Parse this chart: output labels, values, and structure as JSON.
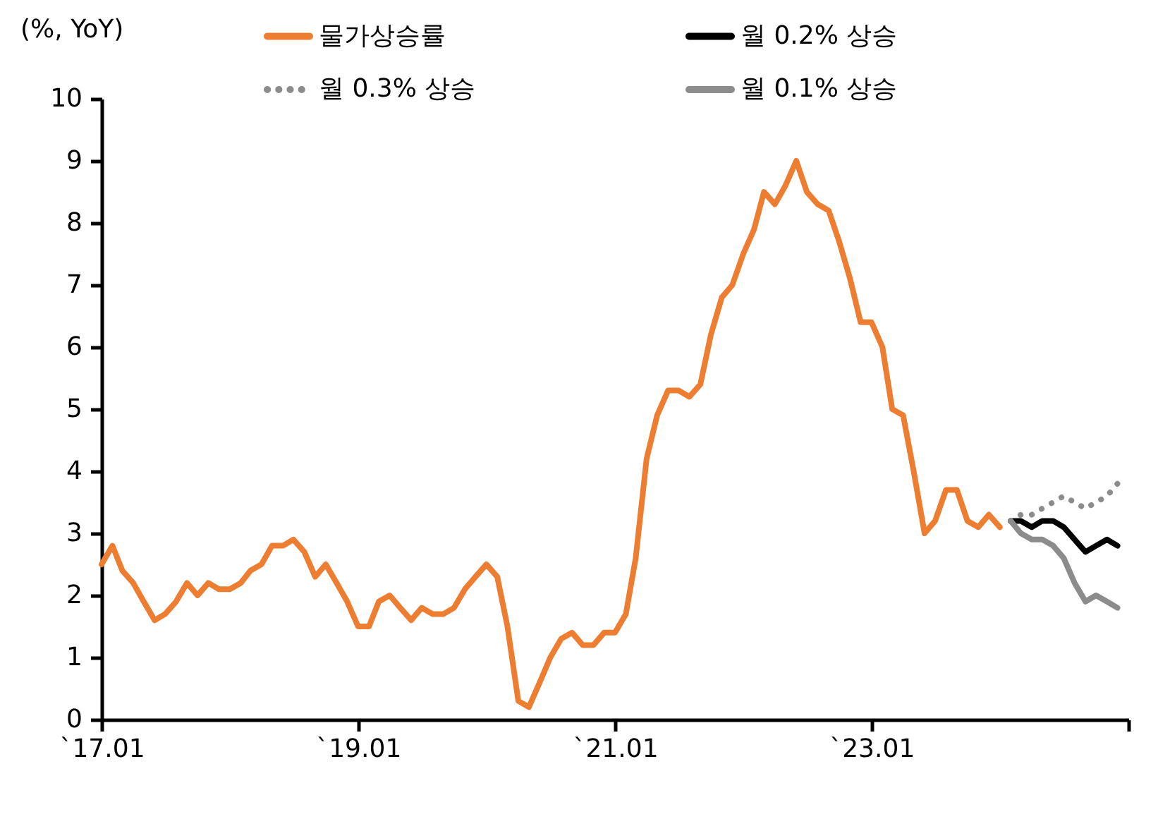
{
  "chart_data": {
    "type": "line",
    "ylabel": "(%, YoY)",
    "xlim": [
      "2017-01",
      "2025-01"
    ],
    "xticks": [
      {
        "value": "2017-01",
        "label": "`17.01"
      },
      {
        "value": "2019-01",
        "label": "`19.01"
      },
      {
        "value": "2021-01",
        "label": "`21.01"
      },
      {
        "value": "2023-01",
        "label": "`23.01"
      },
      {
        "value": "2025-01",
        "label": null
      }
    ],
    "ylim": [
      0,
      10
    ],
    "yticks": [
      0,
      1,
      2,
      3,
      4,
      5,
      6,
      7,
      8,
      9,
      10
    ],
    "grid": false,
    "legend": "top",
    "marker": "none",
    "series": [
      {
        "name": "물가상승률",
        "color": "#ed7d31",
        "line_style": "solid",
        "x": [
          "2017-01",
          "2017-02",
          "2017-03",
          "2017-04",
          "2017-05",
          "2017-06",
          "2017-07",
          "2017-08",
          "2017-09",
          "2017-10",
          "2017-11",
          "2017-12",
          "2018-01",
          "2018-02",
          "2018-03",
          "2018-04",
          "2018-05",
          "2018-06",
          "2018-07",
          "2018-08",
          "2018-09",
          "2018-10",
          "2018-11",
          "2018-12",
          "2019-01",
          "2019-02",
          "2019-03",
          "2019-04",
          "2019-05",
          "2019-06",
          "2019-07",
          "2019-08",
          "2019-09",
          "2019-10",
          "2019-11",
          "2019-12",
          "2020-01",
          "2020-02",
          "2020-03",
          "2020-04",
          "2020-05",
          "2020-06",
          "2020-07",
          "2020-08",
          "2020-09",
          "2020-10",
          "2020-11",
          "2020-12",
          "2021-01",
          "2021-02",
          "2021-03",
          "2021-04",
          "2021-05",
          "2021-06",
          "2021-07",
          "2021-08",
          "2021-09",
          "2021-10",
          "2021-11",
          "2021-12",
          "2022-01",
          "2022-02",
          "2022-03",
          "2022-04",
          "2022-05",
          "2022-06",
          "2022-07",
          "2022-08",
          "2022-09",
          "2022-10",
          "2022-11",
          "2022-12",
          "2023-01",
          "2023-02",
          "2023-03",
          "2023-04",
          "2023-05",
          "2023-06",
          "2023-07",
          "2023-08",
          "2023-09",
          "2023-10",
          "2023-11",
          "2023-12",
          "2024-01"
        ],
        "values": [
          2.5,
          2.8,
          2.4,
          2.2,
          1.9,
          1.6,
          1.7,
          1.9,
          2.2,
          2.0,
          2.2,
          2.1,
          2.1,
          2.2,
          2.4,
          2.5,
          2.8,
          2.8,
          2.9,
          2.7,
          2.3,
          2.5,
          2.2,
          1.9,
          1.5,
          1.5,
          1.9,
          2.0,
          1.8,
          1.6,
          1.8,
          1.7,
          1.7,
          1.8,
          2.1,
          2.3,
          2.5,
          2.3,
          1.5,
          0.3,
          0.2,
          0.6,
          1.0,
          1.3,
          1.4,
          1.2,
          1.2,
          1.4,
          1.4,
          1.7,
          2.6,
          4.2,
          4.9,
          5.3,
          5.3,
          5.2,
          5.4,
          6.2,
          6.8,
          7.0,
          7.5,
          7.9,
          8.5,
          8.3,
          8.6,
          9.0,
          8.5,
          8.3,
          8.2,
          7.7,
          7.1,
          6.4,
          6.4,
          6.0,
          5.0,
          4.9,
          4.0,
          3.0,
          3.2,
          3.7,
          3.7,
          3.2,
          3.1,
          3.3,
          3.1
        ]
      },
      {
        "name": "월 0.2% 상승",
        "color": "#000000",
        "line_style": "solid",
        "x": [
          "2024-02",
          "2024-03",
          "2024-04",
          "2024-05",
          "2024-06",
          "2024-07",
          "2024-08",
          "2024-09",
          "2024-10",
          "2024-11",
          "2024-12"
        ],
        "values": [
          3.2,
          3.2,
          3.1,
          3.2,
          3.2,
          3.1,
          2.9,
          2.7,
          2.8,
          2.9,
          2.8
        ]
      },
      {
        "name": "월 0.3% 상승",
        "color": "#8c8c8c",
        "line_style": "dotted",
        "x": [
          "2024-02",
          "2024-03",
          "2024-04",
          "2024-05",
          "2024-06",
          "2024-07",
          "2024-08",
          "2024-09",
          "2024-10",
          "2024-11",
          "2024-12"
        ],
        "values": [
          3.2,
          3.3,
          3.3,
          3.4,
          3.5,
          3.6,
          3.5,
          3.4,
          3.5,
          3.6,
          3.8
        ]
      },
      {
        "name": "월 0.1% 상승",
        "color": "#8c8c8c",
        "line_style": "solid",
        "x": [
          "2024-02",
          "2024-03",
          "2024-04",
          "2024-05",
          "2024-06",
          "2024-07",
          "2024-08",
          "2024-09",
          "2024-10",
          "2024-11",
          "2024-12"
        ],
        "values": [
          3.2,
          3.0,
          2.9,
          2.9,
          2.8,
          2.6,
          2.2,
          1.9,
          2.0,
          1.9,
          1.8
        ]
      }
    ]
  }
}
